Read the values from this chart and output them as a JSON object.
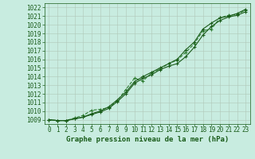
{
  "title": "Graphe pression niveau de la mer (hPa)",
  "xlabel": "Graphe pression niveau de la mer (hPa)",
  "x_ticks": [
    0,
    1,
    2,
    3,
    4,
    5,
    6,
    7,
    8,
    9,
    10,
    11,
    12,
    13,
    14,
    15,
    16,
    17,
    18,
    19,
    20,
    21,
    22,
    23
  ],
  "ylim": [
    1008.5,
    1022.5
  ],
  "xlim": [
    -0.5,
    23.5
  ],
  "yticks": [
    1009,
    1010,
    1011,
    1012,
    1013,
    1014,
    1015,
    1016,
    1017,
    1018,
    1019,
    1020,
    1021,
    1022
  ],
  "bg_color": "#c8ece0",
  "grid_color": "#b0c8b8",
  "line_color_dark": "#1a5c1a",
  "line_color_light": "#2e7d32",
  "series1": [
    1009.0,
    1008.9,
    1008.9,
    1009.1,
    1009.3,
    1009.6,
    1009.9,
    1010.3,
    1011.1,
    1012.0,
    1013.2,
    1013.8,
    1014.2,
    1014.8,
    1015.2,
    1015.5,
    1016.3,
    1017.4,
    1018.8,
    1019.8,
    1020.5,
    1020.9,
    1021.1,
    1021.5
  ],
  "series2": [
    1009.0,
    1008.9,
    1008.9,
    1009.2,
    1009.5,
    1010.1,
    1010.2,
    1010.4,
    1011.2,
    1012.5,
    1013.8,
    1013.5,
    1014.4,
    1014.9,
    1015.5,
    1015.9,
    1016.8,
    1017.8,
    1019.3,
    1019.5,
    1020.8,
    1021.1,
    1021.2,
    1021.7
  ],
  "series3": [
    1009.0,
    1008.9,
    1008.9,
    1009.1,
    1009.3,
    1009.7,
    1010.0,
    1010.5,
    1011.3,
    1012.2,
    1013.4,
    1014.0,
    1014.5,
    1015.0,
    1015.5,
    1016.0,
    1017.1,
    1018.0,
    1019.5,
    1020.2,
    1020.8,
    1021.0,
    1021.3,
    1021.8
  ],
  "tick_fontsize": 5.5,
  "xlabel_fontsize": 6.5,
  "marker_size": 3.0,
  "linewidth": 0.8
}
